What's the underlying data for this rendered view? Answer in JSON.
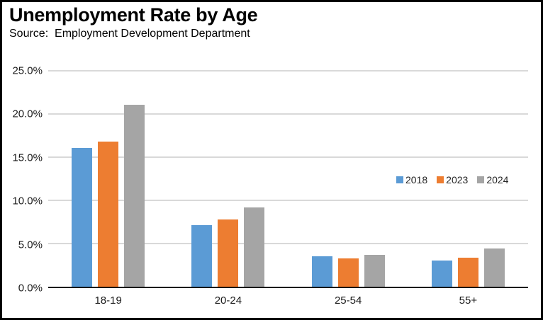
{
  "chart": {
    "title": "Unemployment Rate by Age",
    "source_line": "Source:  Employment Development Department"
  },
  "chart_data": {
    "type": "bar",
    "title": "Unemployment Rate by Age",
    "subtitle": "Source:  Employment Development Department",
    "categories": [
      "18-19",
      "20-24",
      "25-54",
      "55+"
    ],
    "series": [
      {
        "name": "2018",
        "color": "#5B9BD5",
        "values": [
          16.1,
          7.1,
          3.5,
          3.0
        ]
      },
      {
        "name": "2023",
        "color": "#ED7D31",
        "values": [
          16.8,
          7.8,
          3.3,
          3.4
        ]
      },
      {
        "name": "2024",
        "color": "#A5A5A5",
        "values": [
          21.1,
          9.2,
          3.7,
          4.4
        ]
      }
    ],
    "ylim": [
      0,
      25
    ],
    "yticks": [
      0,
      5,
      10,
      15,
      20,
      25
    ],
    "ytick_labels": [
      "0.0%",
      "5.0%",
      "10.0%",
      "15.0%",
      "20.0%",
      "25.0%"
    ],
    "ylabel": "",
    "xlabel": "",
    "grid": true,
    "legend_position": "inside-right",
    "colors": {
      "gridline": "#D9D9D9",
      "axis_line": "#000000",
      "text": "#1a1a1a"
    }
  }
}
